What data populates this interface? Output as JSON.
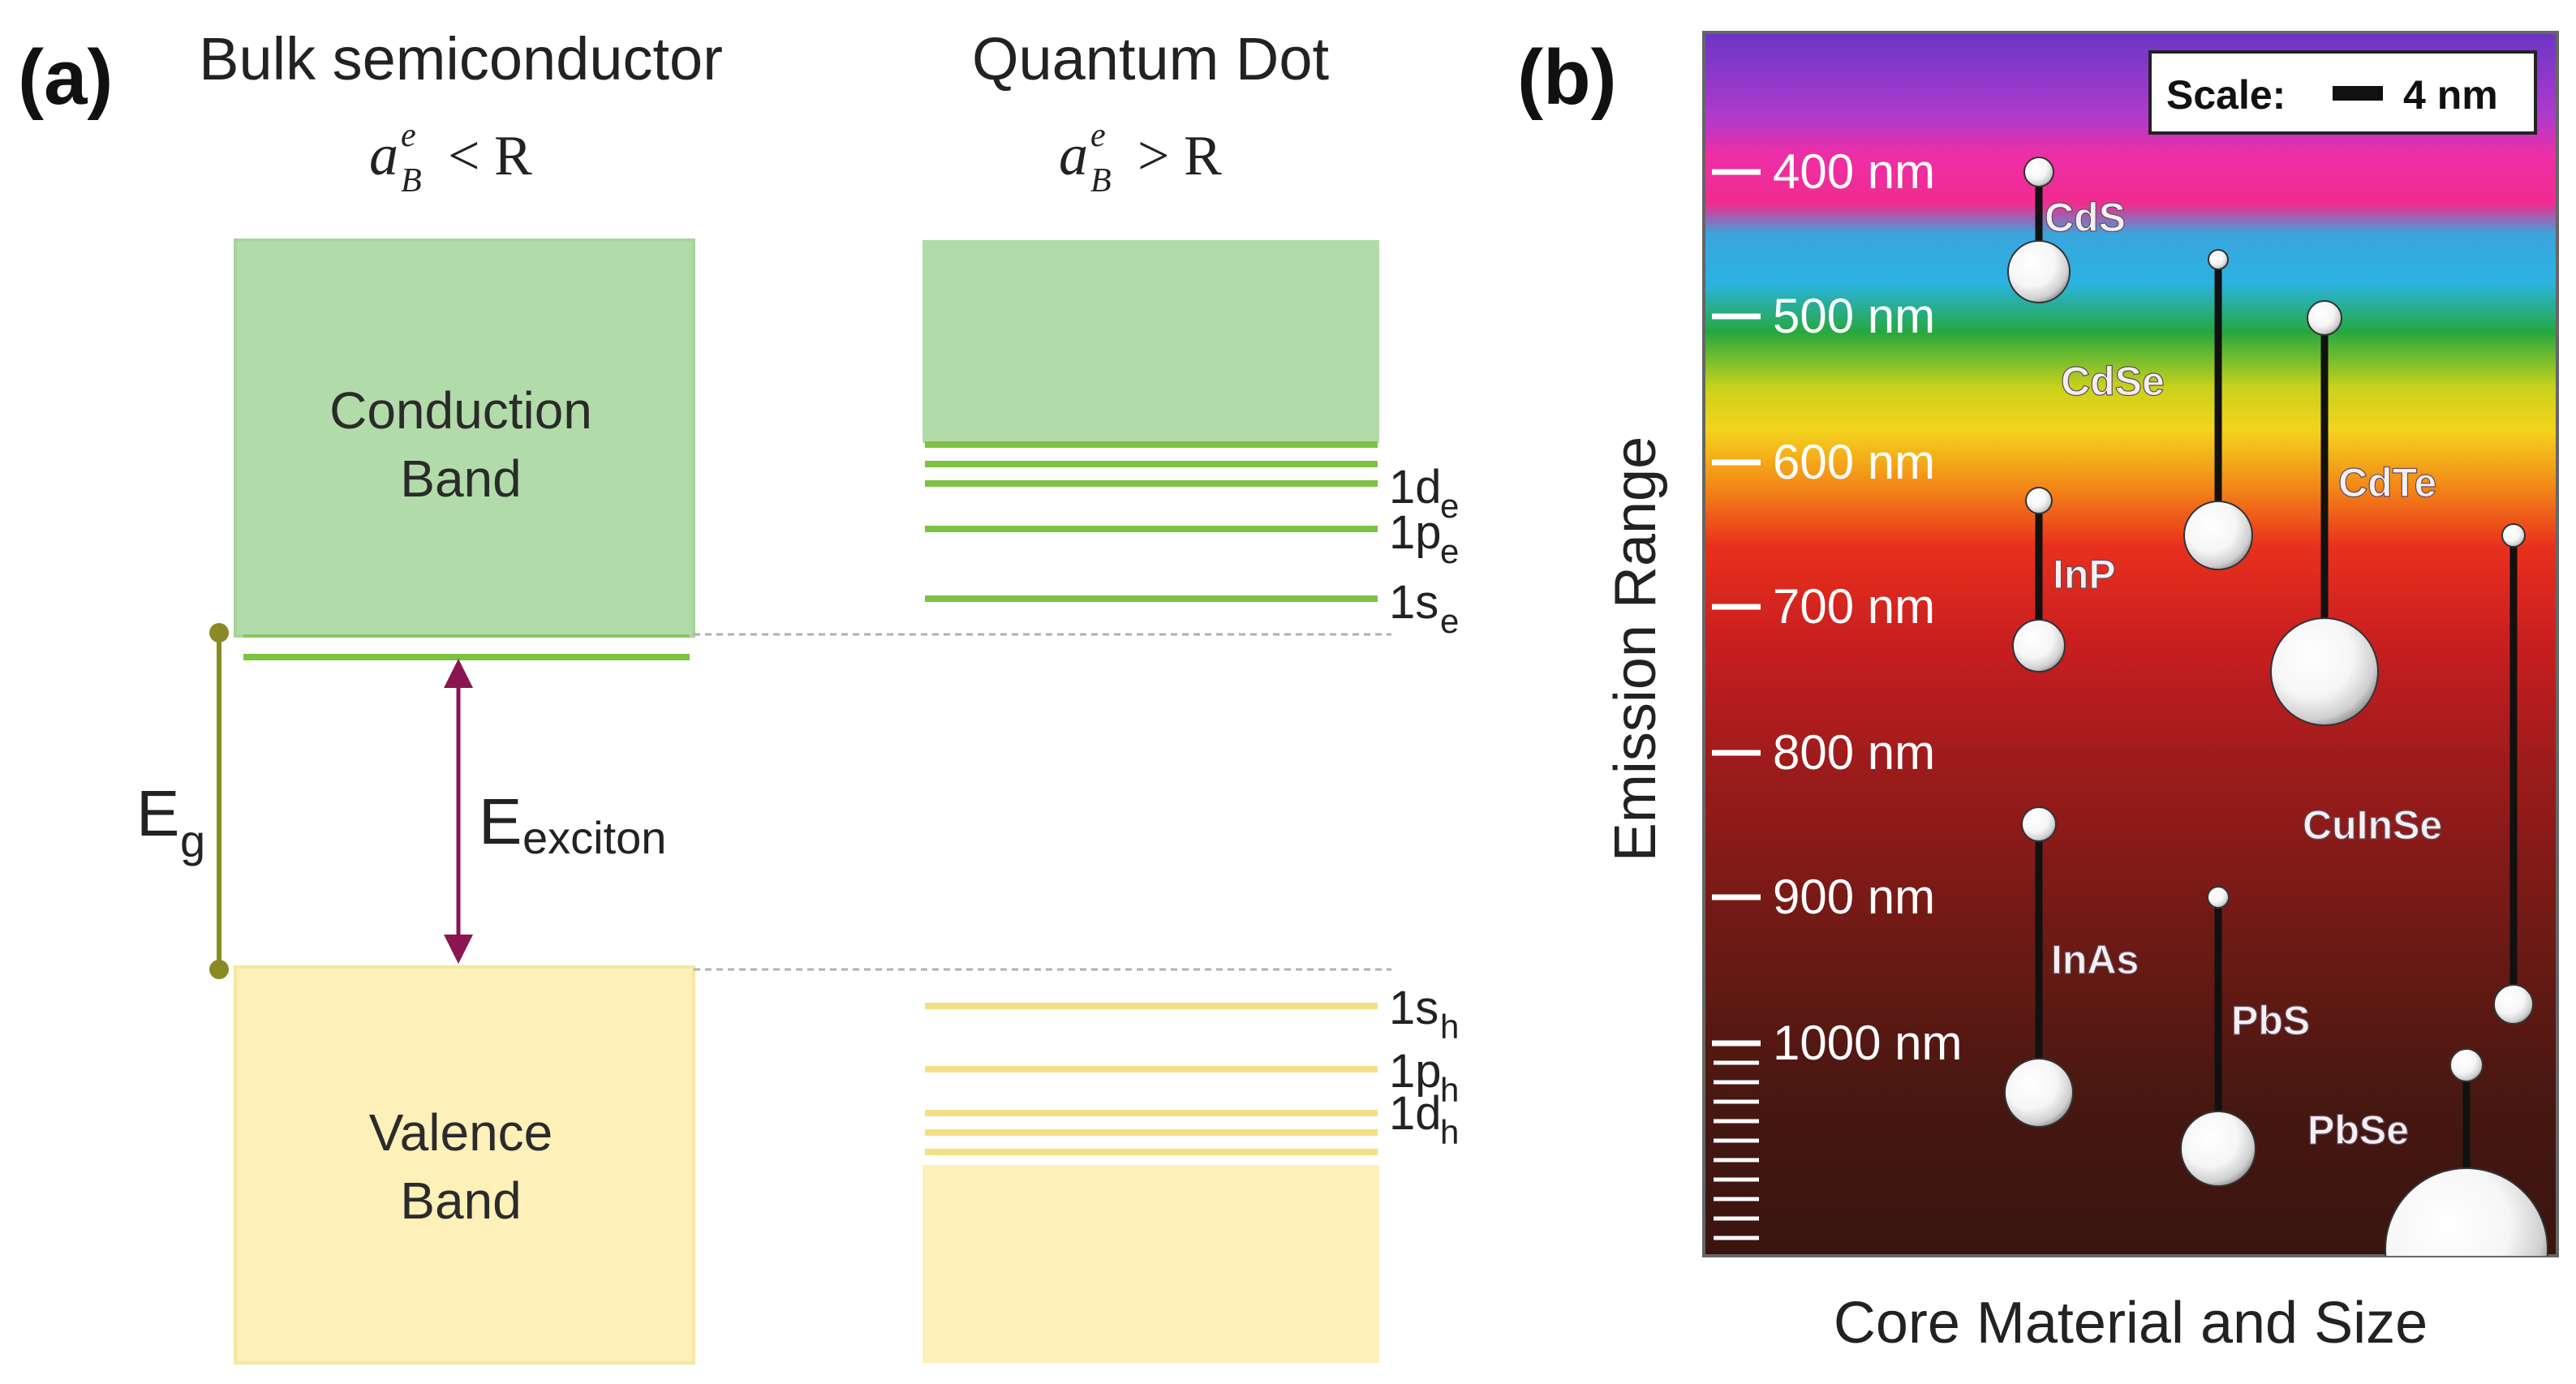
{
  "panel_a": {
    "letter": "(a)",
    "bulk": {
      "title": "Bulk semiconductor",
      "condition_base": "a",
      "condition_sup": "e",
      "condition_sub": "B",
      "condition_rel": "< R",
      "conduction_line1": "Conduction",
      "conduction_line2": "Band",
      "valence_line1": "Valence",
      "valence_line2": "Band"
    },
    "qd": {
      "title": "Quantum Dot",
      "condition_base": "a",
      "condition_sup": "e",
      "condition_sub": "B",
      "condition_rel": "> R"
    },
    "levels": [
      {
        "main": "1d",
        "sub": "e"
      },
      {
        "main": "1p",
        "sub": "e"
      },
      {
        "main": "1s",
        "sub": "e"
      },
      {
        "main": "1s",
        "sub": "h"
      },
      {
        "main": "1p",
        "sub": "h"
      },
      {
        "main": "1d",
        "sub": "h"
      }
    ],
    "eg": {
      "main": "E",
      "sub": "g"
    },
    "exciton": {
      "main": "E",
      "sub": "exciton"
    },
    "colors": {
      "conduction": "#b2dbaa",
      "conduction_line": "#7dc243",
      "valence": "#fdf0b8",
      "valence_line": "#f3df86",
      "eg_line": "#8a8a24",
      "exciton_arrow": "#8a1550"
    }
  },
  "panel_b": {
    "letter": "(b)",
    "scale_label": "Scale:",
    "scale_value": "4 nm",
    "wavelengths": [
      "400 nm",
      "500 nm",
      "600 nm",
      "700 nm",
      "800 nm",
      "900 nm",
      "1000 nm"
    ],
    "x_axis_label": "Core Material and Size",
    "y_axis_label": "Emission Range",
    "materials": [
      "CdS",
      "CdSe",
      "CdTe",
      "InP",
      "CuInSe",
      "InAs",
      "PbS",
      "PbSe"
    ]
  }
}
